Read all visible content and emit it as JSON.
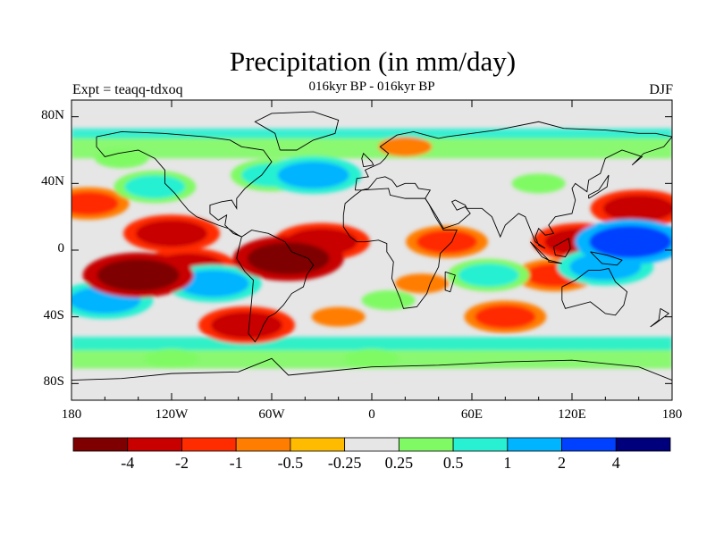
{
  "title": "Precipitation (in mm/day)",
  "subtitle": "016kyr BP - 016kyr BP",
  "experiment_label": "Expt = teaqq-tdxoq",
  "season_label": "DJF",
  "colors": {
    "land_gray": "#e6e6e6",
    "bins": [
      "#7f0000",
      "#c80000",
      "#ff2c00",
      "#ff7d00",
      "#ffbb00",
      "#e6e6e6",
      "#7ffa64",
      "#28f0d2",
      "#00b4ff",
      "#0041ff",
      "#00007d"
    ]
  },
  "chart_data": {
    "type": "heatmap",
    "title": "Precipitation (in mm/day)",
    "xlabel": "",
    "ylabel": "",
    "xlim": [
      -180,
      180
    ],
    "ylim": [
      -90,
      90
    ],
    "x_ticks": [
      "180",
      "120W",
      "60W",
      "0",
      "60E",
      "120E",
      "180"
    ],
    "y_ticks": [
      "80N",
      "40N",
      "0",
      "40S",
      "80S"
    ],
    "colorbar_levels": [
      "-4",
      "-2",
      "-1",
      "-0.5",
      "-0.25",
      "0.25",
      "0.5",
      "1",
      "2",
      "4"
    ],
    "anomaly_regions": [
      {
        "lon": -140,
        "lat": -15,
        "level": -4
      },
      {
        "lon": -110,
        "lat": -10,
        "level": -2
      },
      {
        "lon": -50,
        "lat": -5,
        "level": -4
      },
      {
        "lon": -30,
        "lat": 5,
        "level": -2
      },
      {
        "lon": -120,
        "lat": 10,
        "level": -2
      },
      {
        "lon": -170,
        "lat": 28,
        "level": -1
      },
      {
        "lon": 45,
        "lat": 5,
        "level": -1
      },
      {
        "lon": 30,
        "lat": -20,
        "level": -0.5
      },
      {
        "lon": 125,
        "lat": 5,
        "level": -2
      },
      {
        "lon": 110,
        "lat": -15,
        "level": -1
      },
      {
        "lon": 160,
        "lat": 25,
        "level": -2
      },
      {
        "lon": 20,
        "lat": 62,
        "level": -0.5
      },
      {
        "lon": -20,
        "lat": -40,
        "level": -0.5
      },
      {
        "lon": 80,
        "lat": -40,
        "level": -1
      },
      {
        "lon": -75,
        "lat": -45,
        "level": -2
      },
      {
        "lon": -130,
        "lat": 38,
        "level": 1
      },
      {
        "lon": -35,
        "lat": 45,
        "level": 2
      },
      {
        "lon": -60,
        "lat": 45,
        "level": 1
      },
      {
        "lon": 155,
        "lat": 5,
        "level": 4
      },
      {
        "lon": 140,
        "lat": -10,
        "level": 2
      },
      {
        "lon": -95,
        "lat": -20,
        "level": 2
      },
      {
        "lon": 70,
        "lat": -15,
        "level": 1
      },
      {
        "lon": -160,
        "lat": -30,
        "level": 2
      },
      {
        "lon": 10,
        "lat": -30,
        "level": 0.5
      },
      {
        "lon": 0,
        "lat": -65,
        "level": 0.5
      },
      {
        "lon": -120,
        "lat": -65,
        "level": 0.5
      },
      {
        "lon": 100,
        "lat": 40,
        "level": 0.5
      },
      {
        "lon": -150,
        "lat": 55,
        "level": 0.5
      }
    ]
  }
}
